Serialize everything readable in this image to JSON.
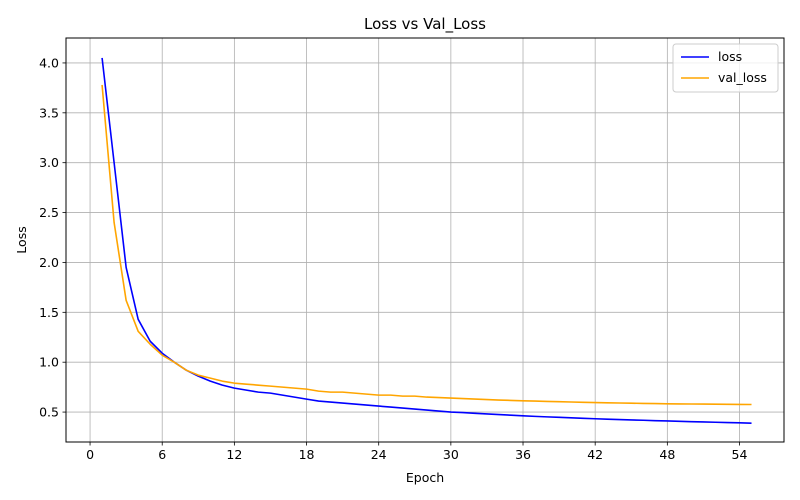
{
  "chart_data": {
    "type": "line",
    "title": "Loss vs Val_Loss",
    "xlabel": "Epoch",
    "ylabel": "Loss",
    "xlim": [
      -2,
      57.7
    ],
    "ylim": [
      0.2,
      4.25
    ],
    "xticks": [
      0,
      6,
      12,
      18,
      24,
      30,
      36,
      42,
      48,
      54
    ],
    "yticks": [
      0.5,
      1.0,
      1.5,
      2.0,
      2.5,
      3.0,
      3.5,
      4.0
    ],
    "grid": true,
    "legend_position": "top-right",
    "x": [
      1,
      2,
      3,
      4,
      5,
      6,
      7,
      8,
      9,
      10,
      11,
      12,
      13,
      14,
      15,
      16,
      17,
      18,
      19,
      20,
      21,
      22,
      23,
      24,
      25,
      26,
      27,
      28,
      29,
      30,
      31,
      32,
      33,
      34,
      35,
      36,
      37,
      38,
      39,
      40,
      41,
      42,
      43,
      44,
      45,
      46,
      47,
      48,
      49,
      50,
      51,
      52,
      53,
      54,
      55
    ],
    "series": [
      {
        "name": "loss",
        "color": "#0000ff",
        "values": [
          4.05,
          3.0,
          1.95,
          1.43,
          1.21,
          1.09,
          1.0,
          0.92,
          0.86,
          0.81,
          0.77,
          0.74,
          0.72,
          0.7,
          0.69,
          0.67,
          0.65,
          0.63,
          0.61,
          0.6,
          0.59,
          0.58,
          0.57,
          0.56,
          0.55,
          0.54,
          0.53,
          0.52,
          0.51,
          0.5,
          0.495,
          0.488,
          0.481,
          0.475,
          0.469,
          0.463,
          0.457,
          0.452,
          0.447,
          0.442,
          0.437,
          0.433,
          0.429,
          0.425,
          0.421,
          0.418,
          0.414,
          0.411,
          0.407,
          0.404,
          0.401,
          0.398,
          0.395,
          0.392,
          0.389
        ]
      },
      {
        "name": "val_loss",
        "color": "#ffa500",
        "values": [
          3.78,
          2.4,
          1.62,
          1.31,
          1.18,
          1.07,
          1.0,
          0.92,
          0.87,
          0.84,
          0.81,
          0.79,
          0.78,
          0.77,
          0.76,
          0.75,
          0.74,
          0.73,
          0.71,
          0.7,
          0.7,
          0.69,
          0.68,
          0.67,
          0.67,
          0.66,
          0.66,
          0.65,
          0.645,
          0.64,
          0.635,
          0.63,
          0.625,
          0.62,
          0.617,
          0.613,
          0.61,
          0.607,
          0.604,
          0.601,
          0.598,
          0.595,
          0.593,
          0.591,
          0.589,
          0.587,
          0.585,
          0.583,
          0.582,
          0.581,
          0.58,
          0.579,
          0.578,
          0.577,
          0.576
        ]
      }
    ]
  }
}
